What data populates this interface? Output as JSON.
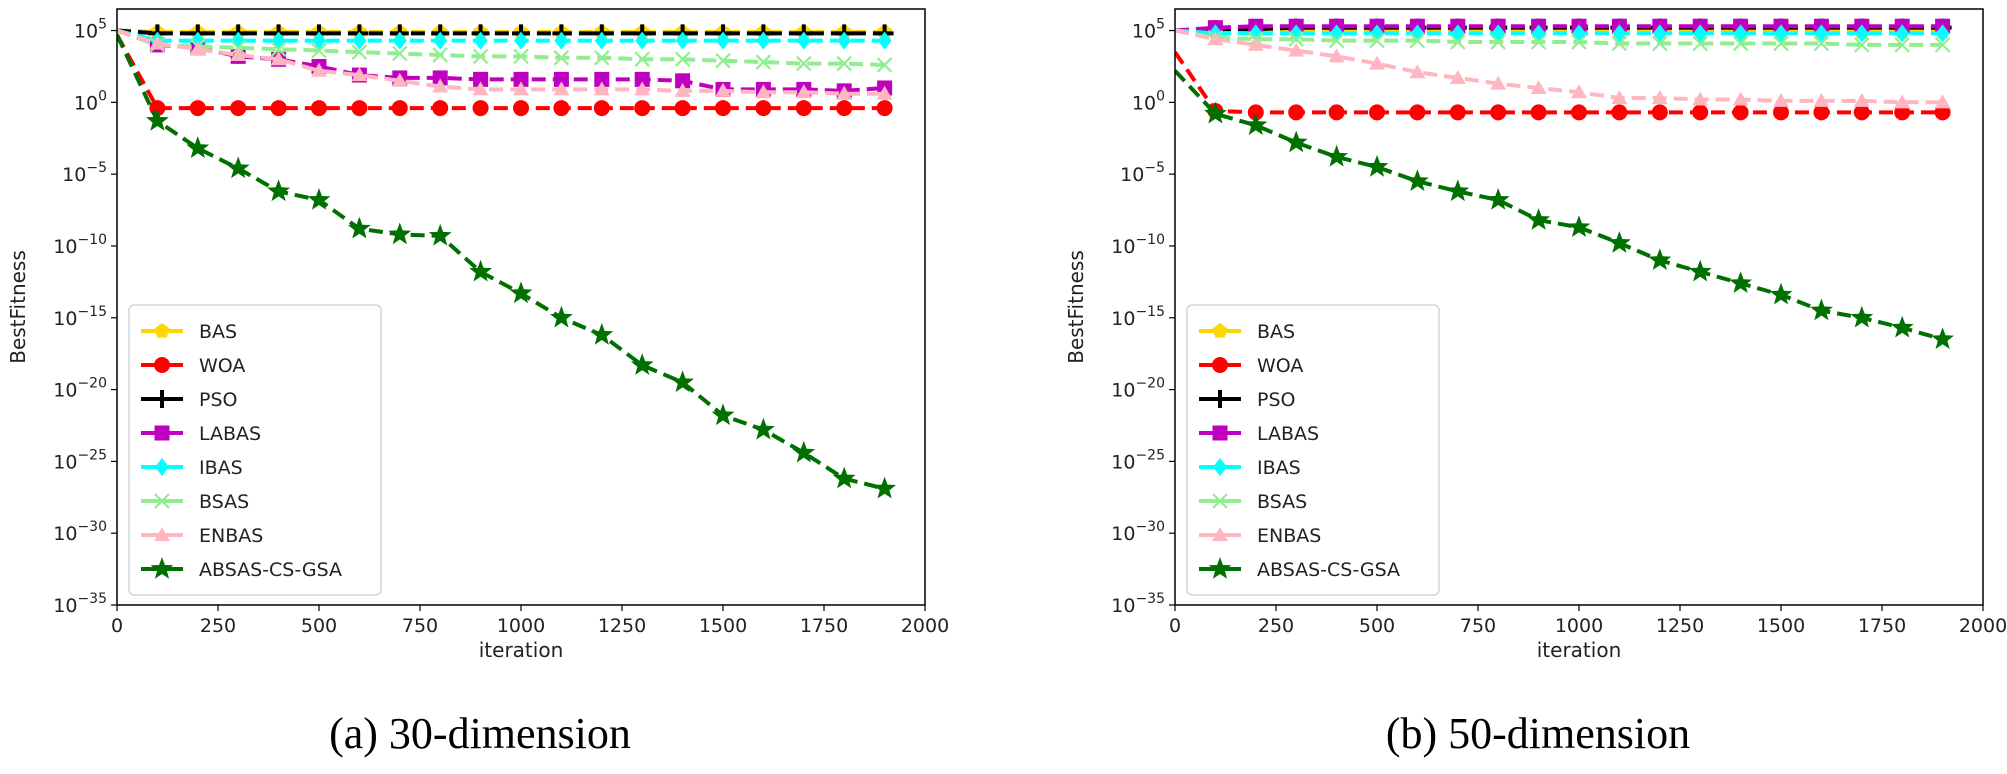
{
  "chart_data": [
    {
      "type": "line",
      "caption": "(a) 30-dimension",
      "xlabel": "iteration",
      "ylabel": "BestFitness",
      "xlim": [
        0,
        2000
      ],
      "ylim_log10": [
        -35,
        6.5
      ],
      "yscale": "log",
      "xticks": [
        0,
        250,
        500,
        750,
        1000,
        1250,
        1500,
        1750,
        2000
      ],
      "yticks": [
        {
          "base": "10",
          "exp": "5",
          "value_log10": 5
        },
        {
          "base": "10",
          "exp": "0",
          "value_log10": 0
        },
        {
          "base": "10",
          "exp": "−5",
          "value_log10": -5
        },
        {
          "base": "10",
          "exp": "−10",
          "value_log10": -10
        },
        {
          "base": "10",
          "exp": "−15",
          "value_log10": -15
        },
        {
          "base": "10",
          "exp": "−20",
          "value_log10": -20
        },
        {
          "base": "10",
          "exp": "−25",
          "value_log10": -25
        },
        {
          "base": "10",
          "exp": "−30",
          "value_log10": -30
        },
        {
          "base": "10",
          "exp": "−35",
          "value_log10": -35
        }
      ],
      "legend": "lower-left",
      "x": [
        0,
        100,
        200,
        300,
        400,
        500,
        600,
        700,
        800,
        900,
        1000,
        1100,
        1200,
        1300,
        1400,
        1500,
        1600,
        1700,
        1800,
        1900
      ],
      "series_log10": [
        {
          "name": "BAS",
          "color": "#FFD700",
          "marker": "pentagon",
          "values": [
            5,
            4.9,
            4.9,
            4.9,
            4.9,
            4.9,
            4.9,
            4.9,
            4.9,
            4.9,
            4.9,
            4.9,
            4.9,
            4.9,
            4.9,
            4.9,
            4.9,
            4.9,
            4.9,
            4.9
          ]
        },
        {
          "name": "WOA",
          "color": "#FF0000",
          "marker": "circle",
          "values": [
            4.7,
            -0.4,
            -0.4,
            -0.4,
            -0.4,
            -0.4,
            -0.4,
            -0.4,
            -0.4,
            -0.4,
            -0.4,
            -0.4,
            -0.4,
            -0.4,
            -0.4,
            -0.4,
            -0.4,
            -0.4,
            -0.4,
            -0.4
          ]
        },
        {
          "name": "PSO",
          "color": "#000000",
          "marker": "plus",
          "values": [
            5,
            4.8,
            4.8,
            4.8,
            4.8,
            4.8,
            4.8,
            4.8,
            4.8,
            4.8,
            4.8,
            4.8,
            4.8,
            4.8,
            4.8,
            4.8,
            4.8,
            4.8,
            4.8,
            4.8
          ]
        },
        {
          "name": "LABAS",
          "color": "#C000C0",
          "marker": "square",
          "values": [
            5,
            4.0,
            3.8,
            3.2,
            3.0,
            2.5,
            1.9,
            1.7,
            1.7,
            1.6,
            1.6,
            1.6,
            1.6,
            1.6,
            1.5,
            0.9,
            0.9,
            0.9,
            0.8,
            1.0
          ]
        },
        {
          "name": "IBAS",
          "color": "#00FFFF",
          "marker": "diamond",
          "values": [
            5,
            4.3,
            4.3,
            4.3,
            4.3,
            4.3,
            4.3,
            4.3,
            4.3,
            4.3,
            4.3,
            4.3,
            4.3,
            4.3,
            4.3,
            4.3,
            4.3,
            4.3,
            4.3,
            4.3
          ]
        },
        {
          "name": "BSAS",
          "color": "#90EE90",
          "marker": "x",
          "values": [
            5,
            4.0,
            3.9,
            3.8,
            3.7,
            3.6,
            3.5,
            3.4,
            3.3,
            3.2,
            3.2,
            3.1,
            3.1,
            3.0,
            3.0,
            2.9,
            2.8,
            2.7,
            2.7,
            2.6
          ]
        },
        {
          "name": "ENBAS",
          "color": "#FFB6C1",
          "marker": "triangle",
          "values": [
            5,
            4.1,
            3.7,
            3.3,
            3.0,
            2.2,
            1.9,
            1.5,
            1.1,
            0.9,
            0.9,
            0.9,
            0.9,
            0.9,
            0.8,
            0.8,
            0.7,
            0.7,
            0.6,
            0.6
          ]
        },
        {
          "name": "ABSAS-CS-GSA",
          "color": "#007000",
          "marker": "star",
          "values": [
            4.7,
            -1.3,
            -3.2,
            -4.6,
            -6.2,
            -6.8,
            -8.8,
            -9.2,
            -9.3,
            -11.8,
            -13.3,
            -15.0,
            -16.2,
            -18.3,
            -19.5,
            -21.8,
            -22.8,
            -24.4,
            -26.2,
            -26.9
          ]
        }
      ]
    },
    {
      "type": "line",
      "caption": "(b) 50-dimension",
      "xlabel": "iteration",
      "ylabel": "BestFitness",
      "xlim": [
        0,
        2000
      ],
      "ylim_log10": [
        -35,
        6.5
      ],
      "yscale": "log",
      "xticks": [
        0,
        250,
        500,
        750,
        1000,
        1250,
        1500,
        1750,
        2000
      ],
      "yticks": [
        {
          "base": "10",
          "exp": "5",
          "value_log10": 5
        },
        {
          "base": "10",
          "exp": "0",
          "value_log10": 0
        },
        {
          "base": "10",
          "exp": "−5",
          "value_log10": -5
        },
        {
          "base": "10",
          "exp": "−10",
          "value_log10": -10
        },
        {
          "base": "10",
          "exp": "−15",
          "value_log10": -15
        },
        {
          "base": "10",
          "exp": "−20",
          "value_log10": -20
        },
        {
          "base": "10",
          "exp": "−25",
          "value_log10": -25
        },
        {
          "base": "10",
          "exp": "−30",
          "value_log10": -30
        },
        {
          "base": "10",
          "exp": "−35",
          "value_log10": -35
        }
      ],
      "legend": "lower-left",
      "x": [
        0,
        100,
        200,
        300,
        400,
        500,
        600,
        700,
        800,
        900,
        1000,
        1100,
        1200,
        1300,
        1400,
        1500,
        1600,
        1700,
        1800,
        1900
      ],
      "series_log10": [
        {
          "name": "BAS",
          "color": "#FFD700",
          "marker": "pentagon",
          "values": [
            5,
            4.9,
            4.9,
            4.9,
            4.9,
            4.9,
            4.9,
            4.9,
            4.9,
            4.9,
            4.9,
            4.9,
            4.9,
            4.9,
            4.9,
            4.9,
            4.9,
            4.9,
            4.9,
            4.9
          ]
        },
        {
          "name": "WOA",
          "color": "#FF0000",
          "marker": "circle",
          "values": [
            3.5,
            -0.6,
            -0.7,
            -0.7,
            -0.7,
            -0.7,
            -0.7,
            -0.7,
            -0.7,
            -0.7,
            -0.7,
            -0.7,
            -0.7,
            -0.7,
            -0.7,
            -0.7,
            -0.7,
            -0.7,
            -0.7,
            -0.7
          ]
        },
        {
          "name": "PSO",
          "color": "#000000",
          "marker": "plus",
          "values": [
            5,
            5.1,
            5.1,
            5.2,
            5.2,
            5.2,
            5.2,
            5.2,
            5.2,
            5.2,
            5.2,
            5.2,
            5.2,
            5.2,
            5.2,
            5.2,
            5.2,
            5.2,
            5.2,
            5.2
          ]
        },
        {
          "name": "LABAS",
          "color": "#C000C0",
          "marker": "square",
          "values": [
            5,
            5.2,
            5.3,
            5.3,
            5.3,
            5.3,
            5.3,
            5.3,
            5.3,
            5.3,
            5.3,
            5.3,
            5.3,
            5.3,
            5.3,
            5.3,
            5.3,
            5.3,
            5.3,
            5.3
          ]
        },
        {
          "name": "IBAS",
          "color": "#00FFFF",
          "marker": "diamond",
          "values": [
            5,
            4.8,
            4.8,
            4.8,
            4.8,
            4.8,
            4.8,
            4.8,
            4.8,
            4.8,
            4.8,
            4.8,
            4.8,
            4.8,
            4.8,
            4.8,
            4.8,
            4.8,
            4.8,
            4.8
          ]
        },
        {
          "name": "BSAS",
          "color": "#90EE90",
          "marker": "x",
          "values": [
            5,
            4.5,
            4.4,
            4.4,
            4.3,
            4.3,
            4.3,
            4.2,
            4.2,
            4.2,
            4.2,
            4.1,
            4.1,
            4.1,
            4.1,
            4.1,
            4.1,
            4.0,
            4.0,
            4.0
          ]
        },
        {
          "name": "ENBAS",
          "color": "#FFB6C1",
          "marker": "triangle",
          "values": [
            5,
            4.4,
            4.0,
            3.6,
            3.2,
            2.7,
            2.1,
            1.7,
            1.3,
            1.0,
            0.7,
            0.3,
            0.3,
            0.2,
            0.2,
            0.1,
            0.1,
            0.1,
            0.0,
            0.0
          ]
        },
        {
          "name": "ABSAS-CS-GSA",
          "color": "#007000",
          "marker": "star",
          "values": [
            2.2,
            -0.8,
            -1.6,
            -2.8,
            -3.8,
            -4.5,
            -5.5,
            -6.2,
            -6.8,
            -8.2,
            -8.7,
            -9.8,
            -11.0,
            -11.8,
            -12.6,
            -13.4,
            -14.5,
            -15.0,
            -15.7,
            -16.5
          ]
        }
      ]
    }
  ]
}
